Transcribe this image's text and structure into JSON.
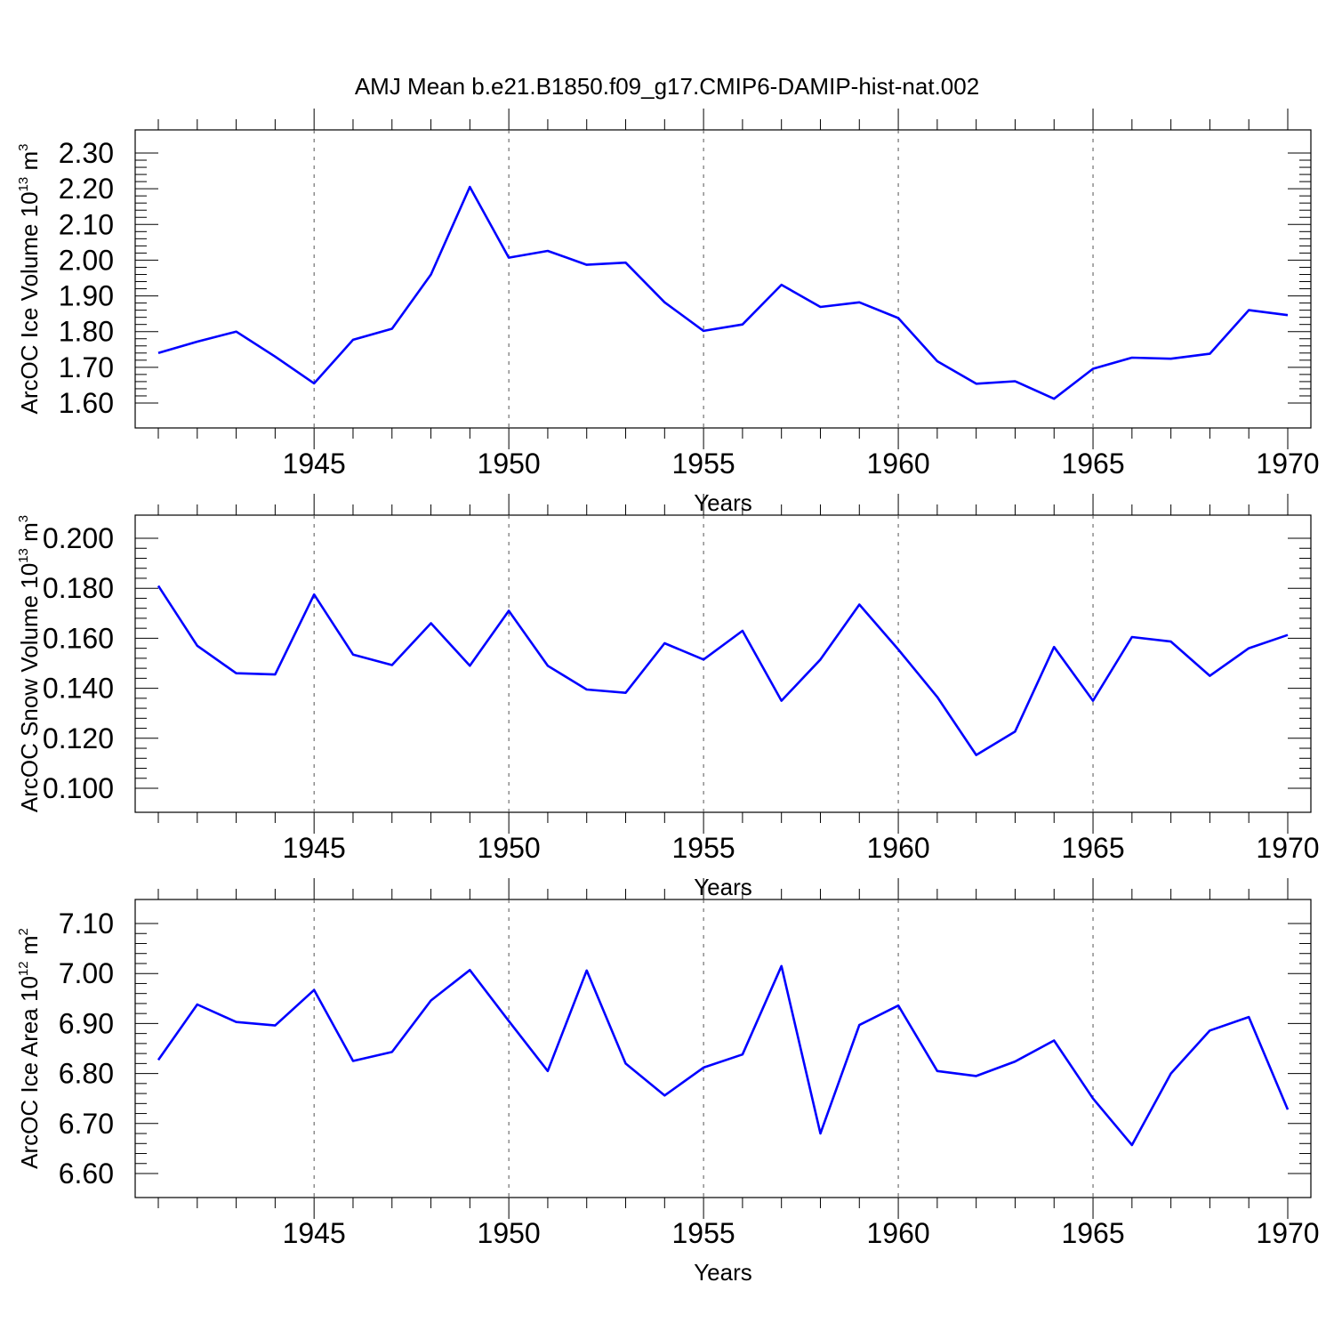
{
  "title": "AMJ Mean b.e21.B1850.f09_g17.CMIP6-DAMIP-hist-nat.002",
  "chart_data": [
    {
      "type": "line",
      "title": "",
      "xlabel": "Years",
      "ylabel": {
        "prefix": "ArcOC Ice Volume 10",
        "exponent": "13",
        "unit": " m",
        "unit_exponent": "3"
      },
      "xlim": [
        1941,
        1970
      ],
      "ylim": [
        1.6,
        2.3
      ],
      "x_ticks": [
        "1945",
        "1950",
        "1955",
        "1960",
        "1965",
        "1970"
      ],
      "y_ticks": [
        "1.60",
        "1.70",
        "1.80",
        "1.90",
        "2.00",
        "2.10",
        "2.20",
        "2.30"
      ],
      "grid": "vertical dashed at major x ticks",
      "series_color": "#0000ff",
      "series": [
        {
          "name": "",
          "x": [
            1941,
            1942,
            1943,
            1944,
            1945,
            1946,
            1947,
            1948,
            1949,
            1950,
            1951,
            1952,
            1953,
            1954,
            1955,
            1956,
            1957,
            1958,
            1959,
            1960,
            1961,
            1962,
            1963,
            1964,
            1965,
            1966,
            1967,
            1968,
            1969,
            1970
          ],
          "values": [
            1.74,
            1.772,
            1.8,
            1.73,
            1.655,
            1.777,
            1.808,
            1.96,
            2.205,
            2.007,
            2.026,
            1.987,
            1.993,
            1.882,
            1.802,
            1.82,
            1.931,
            1.869,
            1.882,
            1.838,
            1.717,
            1.654,
            1.661,
            1.612,
            1.696,
            1.727,
            1.724,
            1.738,
            1.86,
            1.846
          ]
        }
      ]
    },
    {
      "type": "line",
      "title": "",
      "xlabel": "Years",
      "ylabel": {
        "prefix": "ArcOC Snow Volume 10",
        "exponent": "13",
        "unit": " m",
        "unit_exponent": "3"
      },
      "xlim": [
        1941,
        1970
      ],
      "ylim": [
        0.1,
        0.2
      ],
      "x_ticks": [
        "1945",
        "1950",
        "1955",
        "1960",
        "1965",
        "1970"
      ],
      "y_ticks": [
        "0.100",
        "0.120",
        "0.140",
        "0.160",
        "0.180",
        "0.200"
      ],
      "grid": "vertical dashed at major x ticks",
      "series_color": "#0000ff",
      "series": [
        {
          "name": "",
          "x": [
            1941,
            1942,
            1943,
            1944,
            1945,
            1946,
            1947,
            1948,
            1949,
            1950,
            1951,
            1952,
            1953,
            1954,
            1955,
            1956,
            1957,
            1958,
            1959,
            1960,
            1961,
            1962,
            1963,
            1964,
            1965,
            1966,
            1967,
            1968,
            1969,
            1970
          ],
          "values": [
            0.181,
            0.157,
            0.146,
            0.1455,
            0.1775,
            0.1535,
            0.1493,
            0.166,
            0.149,
            0.171,
            0.149,
            0.1395,
            0.1382,
            0.158,
            0.1515,
            0.163,
            0.135,
            0.1515,
            0.1735,
            0.1555,
            0.1365,
            0.1133,
            0.1227,
            0.1565,
            0.135,
            0.1605,
            0.1587,
            0.145,
            0.156,
            0.1613
          ]
        }
      ]
    },
    {
      "type": "line",
      "title": "",
      "xlabel": "Years",
      "ylabel": {
        "prefix": "ArcOC Ice Area 10",
        "exponent": "12",
        "unit": " m",
        "unit_exponent": "2"
      },
      "xlim": [
        1941,
        1970
      ],
      "ylim": [
        6.6,
        7.1
      ],
      "x_ticks": [
        "1945",
        "1950",
        "1955",
        "1960",
        "1965",
        "1970"
      ],
      "y_ticks": [
        "6.60",
        "6.70",
        "6.80",
        "6.90",
        "7.00",
        "7.10"
      ],
      "grid": "vertical dashed at major x ticks",
      "series_color": "#0000ff",
      "series": [
        {
          "name": "",
          "x": [
            1941,
            1942,
            1943,
            1944,
            1945,
            1946,
            1947,
            1948,
            1949,
            1950,
            1951,
            1952,
            1953,
            1954,
            1955,
            1956,
            1957,
            1958,
            1959,
            1960,
            1961,
            1962,
            1963,
            1964,
            1965,
            1966,
            1967,
            1968,
            1969,
            1970
          ],
          "values": [
            6.827,
            6.938,
            6.903,
            6.896,
            6.967,
            6.825,
            6.843,
            6.946,
            7.007,
            6.905,
            6.805,
            7.006,
            6.82,
            6.756,
            6.812,
            6.838,
            7.015,
            6.68,
            6.897,
            6.936,
            6.805,
            6.795,
            6.824,
            6.866,
            6.75,
            6.657,
            6.8,
            6.886,
            6.913,
            6.728
          ]
        }
      ]
    }
  ]
}
